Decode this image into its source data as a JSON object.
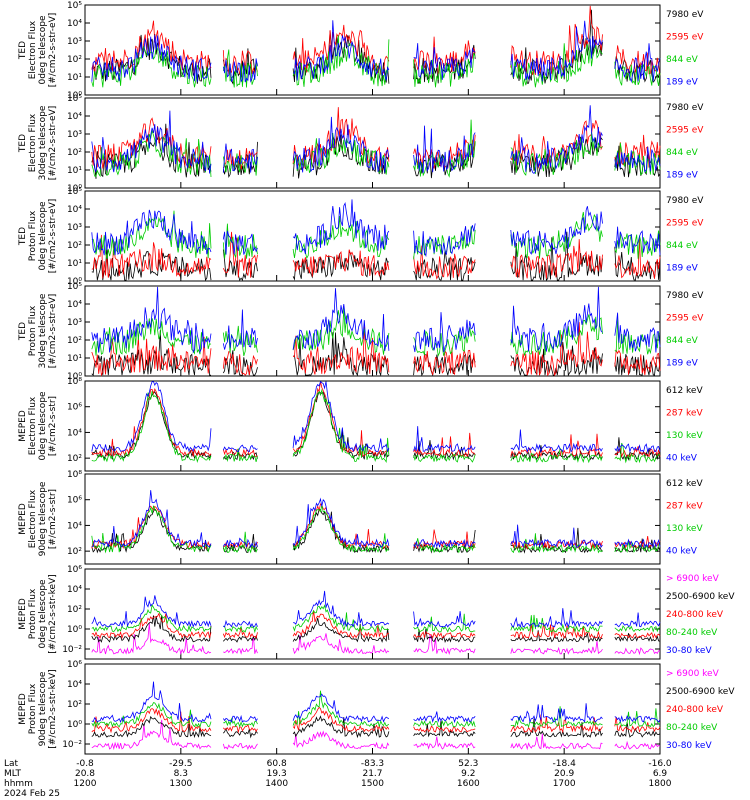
{
  "chart_data": [
    {
      "type": "line",
      "panel": "TED 0deg electron",
      "ylabel": [
        "TED",
        "Electron Flux",
        "0deg telescope",
        "[#/cm2-s-str-eV]"
      ],
      "yticks": [
        "10⁰",
        "10¹",
        "10²",
        "10³",
        "10⁴",
        "10⁵"
      ],
      "ylog_range": [
        0,
        5
      ],
      "xlim": [
        "1200",
        "1800"
      ],
      "series": [
        {
          "name": "7980 eV",
          "color": "#000000",
          "level": 1.3,
          "bump": 1.4
        },
        {
          "name": "2595 eV",
          "color": "#ff0000",
          "level": 1.8,
          "bump": 1.5
        },
        {
          "name": "844 eV",
          "color": "#00cc00",
          "level": 1.1,
          "bump": 1.2
        },
        {
          "name": "189 eV",
          "color": "#0000ff",
          "level": 1.4,
          "bump": 1.3
        }
      ]
    },
    {
      "type": "line",
      "panel": "TED 30deg electron",
      "ylabel": [
        "TED",
        "Electron Flux",
        "30deg telescope",
        "[#/cm2-s-str-eV]"
      ],
      "yticks": [
        "10⁰",
        "10¹",
        "10²",
        "10³",
        "10⁴",
        "10⁵"
      ],
      "ylog_range": [
        0,
        5
      ],
      "xlim": [
        "1200",
        "1800"
      ],
      "series": [
        {
          "name": "7980 eV",
          "color": "#000000",
          "level": 1.2,
          "bump": 1.2
        },
        {
          "name": "2595 eV",
          "color": "#ff0000",
          "level": 1.7,
          "bump": 1.5
        },
        {
          "name": "844 eV",
          "color": "#00cc00",
          "level": 1.3,
          "bump": 1.2
        },
        {
          "name": "189 eV",
          "color": "#0000ff",
          "level": 1.5,
          "bump": 1.4
        }
      ]
    },
    {
      "type": "line",
      "panel": "TED 0deg proton",
      "ylabel": [
        "TED",
        "Proton Flux",
        "0deg telescope",
        "[#/cm2-s-str-eV]"
      ],
      "yticks": [
        "10⁰",
        "10¹",
        "10²",
        "10³",
        "10⁴",
        "10⁵"
      ],
      "ylog_range": [
        0,
        5
      ],
      "xlim": [
        "1200",
        "1800"
      ],
      "series": [
        {
          "name": "7980 eV",
          "color": "#000000",
          "level": 0.6,
          "bump": 0.4
        },
        {
          "name": "2595 eV",
          "color": "#ff0000",
          "level": 0.8,
          "bump": 0.4
        },
        {
          "name": "844 eV",
          "color": "#00cc00",
          "level": 1.9,
          "bump": 1.1
        },
        {
          "name": "189 eV",
          "color": "#0000ff",
          "level": 2.1,
          "bump": 1.4
        }
      ]
    },
    {
      "type": "line",
      "panel": "TED 30deg proton",
      "ylabel": [
        "TED",
        "Proton Flux",
        "30deg telescope",
        "[#/cm2-s-str-eV]"
      ],
      "yticks": [
        "10⁰",
        "10¹",
        "10²",
        "10³",
        "10⁴",
        "10⁵"
      ],
      "ylog_range": [
        0,
        5
      ],
      "xlim": [
        "1200",
        "1800"
      ],
      "series": [
        {
          "name": "7980 eV",
          "color": "#000000",
          "level": 0.5,
          "bump": 0.3
        },
        {
          "name": "2595 eV",
          "color": "#ff0000",
          "level": 0.7,
          "bump": 0.3
        },
        {
          "name": "844 eV",
          "color": "#00cc00",
          "level": 1.8,
          "bump": 1.0
        },
        {
          "name": "189 eV",
          "color": "#0000ff",
          "level": 2.0,
          "bump": 1.4
        }
      ]
    },
    {
      "type": "line",
      "panel": "MEPED 0deg electron",
      "ylabel": [
        "MEPED",
        "Electron Flux",
        "0deg telescope",
        "[#/cm2-s-str]"
      ],
      "yticks": [
        "10²",
        "10⁴",
        "10⁶",
        "10⁸"
      ],
      "ylog_range": [
        1,
        8
      ],
      "xlim": [
        "1200",
        "1800"
      ],
      "series": [
        {
          "name": "612 keV",
          "color": "#000000",
          "level": 2.2,
          "bump": 4.8
        },
        {
          "name": "287 keV",
          "color": "#ff0000",
          "level": 2.4,
          "bump": 4.9
        },
        {
          "name": "130 keV",
          "color": "#00cc00",
          "level": 2.0,
          "bump": 5.0
        },
        {
          "name": "40 keV",
          "color": "#0000ff",
          "level": 2.8,
          "bump": 5.1
        }
      ]
    },
    {
      "type": "line",
      "panel": "MEPED 90deg electron",
      "ylabel": [
        "MEPED",
        "Electron Flux",
        "90deg telescope",
        "[#/cm2-s-str]"
      ],
      "yticks": [
        "10²",
        "10⁴",
        "10⁶",
        "10⁸"
      ],
      "ylog_range": [
        1,
        8
      ],
      "xlim": [
        "1200",
        "1800"
      ],
      "series": [
        {
          "name": "612 keV",
          "color": "#000000",
          "level": 2.2,
          "bump": 2.8
        },
        {
          "name": "287 keV",
          "color": "#ff0000",
          "level": 2.5,
          "bump": 3.0
        },
        {
          "name": "130 keV",
          "color": "#00cc00",
          "level": 2.2,
          "bump": 3.1
        },
        {
          "name": "40 keV",
          "color": "#0000ff",
          "level": 2.6,
          "bump": 3.2
        }
      ]
    },
    {
      "type": "line",
      "panel": "MEPED 0deg proton",
      "ylabel": [
        "MEPED",
        "Proton Flux",
        "0deg telescope",
        "[#/cm2-s-str-keV]"
      ],
      "yticks": [
        "10⁻²",
        "10⁰",
        "10²",
        "10⁴",
        "10⁶"
      ],
      "ylog_range": [
        -3,
        6
      ],
      "xlim": [
        "1200",
        "1800"
      ],
      "series": [
        {
          "name": "> 6900 keV",
          "color": "#ff00ff",
          "level": -2.2,
          "bump": 1.2
        },
        {
          "name": "2500-6900 keV",
          "color": "#000000",
          "level": -1.0,
          "bump": 1.5
        },
        {
          "name": "240-800 keV",
          "color": "#ff0000",
          "level": -0.6,
          "bump": 1.8
        },
        {
          "name": "80-240 keV",
          "color": "#00cc00",
          "level": 0.0,
          "bump": 2.0
        },
        {
          "name": "30-80 keV",
          "color": "#0000ff",
          "level": 0.5,
          "bump": 2.2
        }
      ]
    },
    {
      "type": "line",
      "panel": "MEPED 90deg proton",
      "ylabel": [
        "MEPED",
        "Proton Flux",
        "90deg telescope",
        "[#/cm2-s-str-keV]"
      ],
      "yticks": [
        "10⁻²",
        "10⁰",
        "10²",
        "10⁴",
        "10⁶"
      ],
      "ylog_range": [
        -3,
        6
      ],
      "xlim": [
        "1200",
        "1800"
      ],
      "series": [
        {
          "name": "> 6900 keV",
          "color": "#ff00ff",
          "level": -2.2,
          "bump": 1.2
        },
        {
          "name": "2500-6900 keV",
          "color": "#000000",
          "level": -1.0,
          "bump": 1.5
        },
        {
          "name": "240-800 keV",
          "color": "#ff0000",
          "level": -0.5,
          "bump": 1.8
        },
        {
          "name": "80-240 keV",
          "color": "#00cc00",
          "level": 0.0,
          "bump": 2.0
        },
        {
          "name": "30-80 keV",
          "color": "#0000ff",
          "level": 0.5,
          "bump": 2.3
        }
      ]
    }
  ],
  "axis_footer": {
    "row_labels": [
      "Lat",
      "MLT",
      "hhmm",
      "2024 Feb 25"
    ],
    "lat": [
      "-0.8",
      "-29.5",
      "60.8",
      "-83.3",
      "52.3",
      "-18.4",
      "-16.0"
    ],
    "mlt": [
      "20.8",
      "8.3",
      "19.3",
      "21.7",
      "9.2",
      "20.9",
      "6.9"
    ],
    "hhmm": [
      "1200",
      "1300",
      "1400",
      "1500",
      "1600",
      "1700",
      "1800"
    ]
  }
}
